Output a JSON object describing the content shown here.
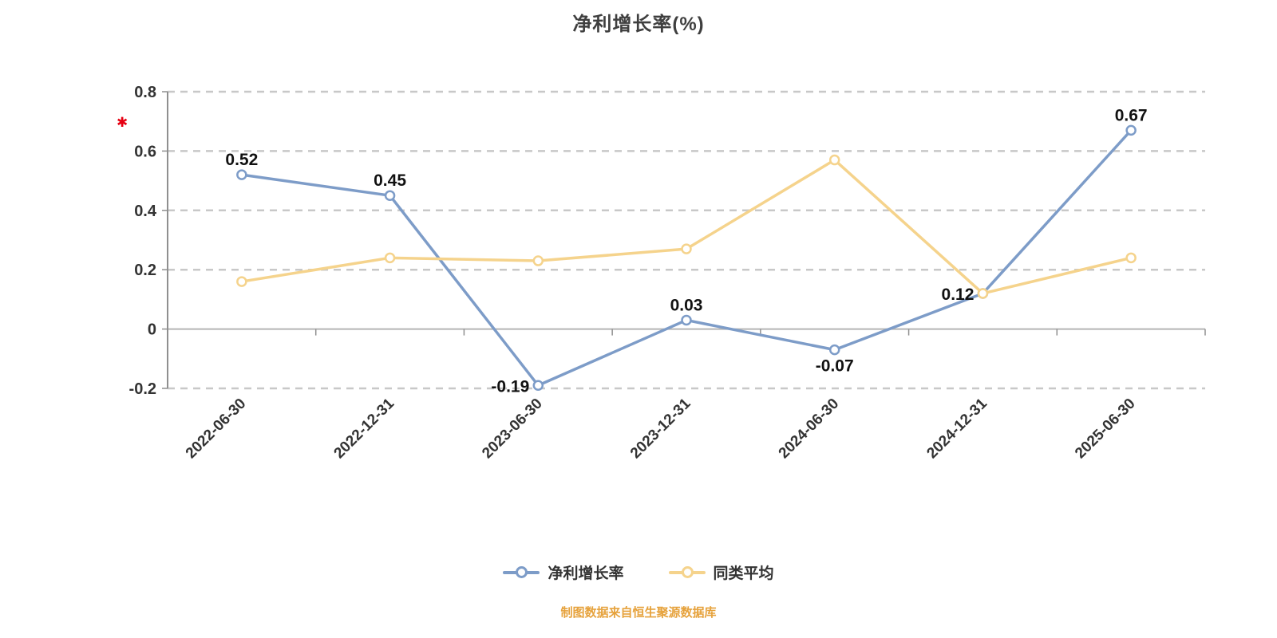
{
  "title": "净利增长率(%)",
  "annotation": "✱",
  "footer": "制图数据来自恒生聚源数据库",
  "colors": {
    "series1": "#7d9cc8",
    "series2": "#f5d38c",
    "grid": "#c8c8c8",
    "zero_axis": "#b5b5b5",
    "axis": "#8f8f8f",
    "axis_label": "#333333",
    "data_label": "#111111",
    "title": "#3f3f3f",
    "footer_orange": "#e6a23c",
    "annotation_red": "#e60012"
  },
  "legend": [
    {
      "label": "净利增长率",
      "color": "#7d9cc8"
    },
    {
      "label": "同类平均",
      "color": "#f5d38c"
    }
  ],
  "chart_data": {
    "type": "line",
    "title": "净利增长率(%)",
    "categories": [
      "2022-06-30",
      "2022-12-31",
      "2023-06-30",
      "2023-12-31",
      "2024-06-30",
      "2024-12-31",
      "2025-06-30"
    ],
    "series": [
      {
        "name": "净利增长率",
        "color": "#7d9cc8",
        "values": [
          0.52,
          0.45,
          -0.19,
          0.03,
          -0.07,
          0.12,
          0.67
        ],
        "labels": [
          "0.52",
          "0.45",
          "-0.19",
          "0.03",
          "-0.07",
          "0.12",
          "0.67"
        ],
        "label_positions": [
          "top",
          "top",
          "left",
          "top",
          "bottom",
          "left",
          "top"
        ]
      },
      {
        "name": "同类平均",
        "color": "#f5d38c",
        "values": [
          0.16,
          0.24,
          0.23,
          0.27,
          0.57,
          0.12,
          0.24
        ],
        "labels": null
      }
    ],
    "ylim": [
      -0.2,
      0.8
    ],
    "yticks": [
      -0.2,
      0,
      0.2,
      0.4,
      0.6,
      0.8
    ],
    "ytick_labels": [
      "-0.2",
      "0",
      "0.2",
      "0.4",
      "0.6",
      "0.8"
    ],
    "xlabel": "",
    "ylabel": "",
    "grid": true,
    "grid_style": "dashed",
    "legend_position": "bottom"
  }
}
